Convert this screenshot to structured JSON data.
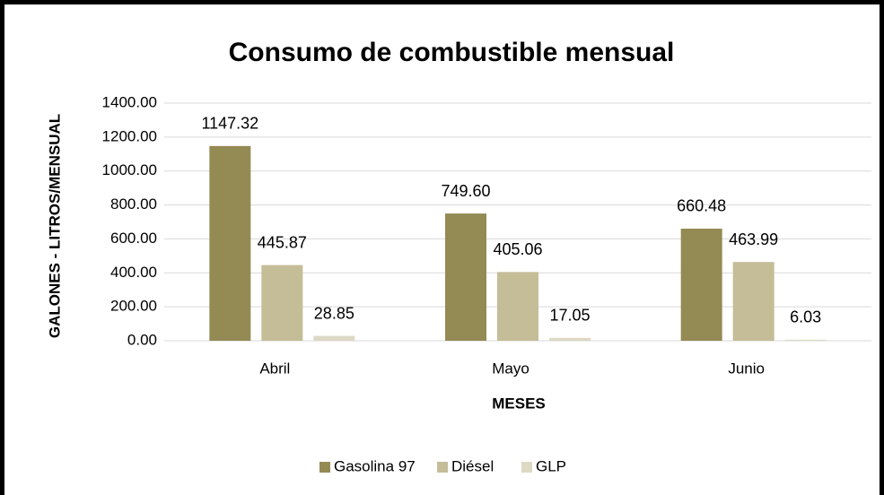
{
  "chart_data": {
    "type": "bar",
    "title": "Consumo de combustible mensual",
    "x_label": "MESES",
    "y_label": "GALONES - LITROS/MENSUAL",
    "categories": [
      "Abril",
      "Mayo",
      "Junio"
    ],
    "series": [
      {
        "name": "Gasolina 97",
        "color": "#948a54",
        "values": [
          1147.32,
          749.6,
          660.48
        ],
        "value_labels": [
          "1147.32",
          "749.60",
          "660.48"
        ]
      },
      {
        "name": "Diésel",
        "color": "#c4bd97",
        "values": [
          445.87,
          405.06,
          463.99
        ],
        "value_labels": [
          "445.87",
          "405.06",
          "463.99"
        ]
      },
      {
        "name": "GLP",
        "color": "#ddd9c4",
        "values": [
          28.85,
          17.05,
          6.03
        ],
        "value_labels": [
          "28.85",
          "17.05",
          "6.03"
        ]
      }
    ],
    "ylim": [
      0,
      1400
    ],
    "yticks": [
      {
        "value": 0,
        "label": "0.00"
      },
      {
        "value": 200,
        "label": "200.00"
      },
      {
        "value": 400,
        "label": "400.00"
      },
      {
        "value": 600,
        "label": "600.00"
      },
      {
        "value": 800,
        "label": "800.00"
      },
      {
        "value": 1000,
        "label": "1000.00"
      },
      {
        "value": 1200,
        "label": "1200.00"
      },
      {
        "value": 1400,
        "label": "1400.00"
      }
    ],
    "grid": true,
    "legend": "bottom"
  }
}
